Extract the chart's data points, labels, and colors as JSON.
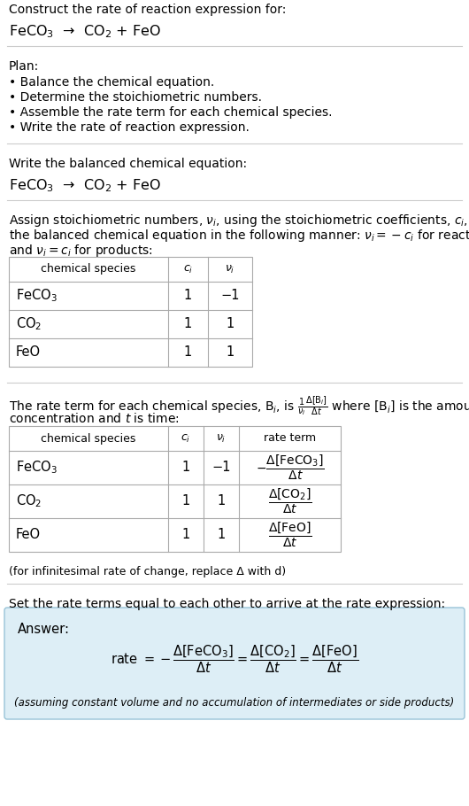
{
  "title_line1": "Construct the rate of reaction expression for:",
  "title_line2": "FeCO$_3$  →  CO$_2$ + FeO",
  "plan_header": "Plan:",
  "plan_items": [
    "• Balance the chemical equation.",
    "• Determine the stoichiometric numbers.",
    "• Assemble the rate term for each chemical species.",
    "• Write the rate of reaction expression."
  ],
  "section2_header": "Write the balanced chemical equation:",
  "section2_eq": "FeCO$_3$  →  CO$_2$ + FeO",
  "table1_headers": [
    "chemical species",
    "$c_i$",
    "$\\nu_i$"
  ],
  "table1_rows": [
    [
      "FeCO$_3$",
      "1",
      "−1"
    ],
    [
      "CO$_2$",
      "1",
      "1"
    ],
    [
      "FeO",
      "1",
      "1"
    ]
  ],
  "table2_headers": [
    "chemical species",
    "$c_i$",
    "$\\nu_i$",
    "rate term"
  ],
  "table2_rows": [
    [
      "FeCO$_3$",
      "1",
      "−1",
      "$-\\dfrac{\\Delta[\\mathrm{FeCO_3}]}{\\Delta t}$"
    ],
    [
      "CO$_2$",
      "1",
      "1",
      "$\\dfrac{\\Delta[\\mathrm{CO_2}]}{\\Delta t}$"
    ],
    [
      "FeO",
      "1",
      "1",
      "$\\dfrac{\\Delta[\\mathrm{FeO}]}{\\Delta t}$"
    ]
  ],
  "infinitesimal_note": "(for infinitesimal rate of change, replace Δ with d)",
  "section5_header": "Set the rate terms equal to each other to arrive at the rate expression:",
  "answer_label": "Answer:",
  "answer_note": "(assuming constant volume and no accumulation of intermediates or side products)",
  "answer_box_color": "#ddeef6",
  "answer_box_border": "#99c4d8",
  "bg_color": "#ffffff",
  "table_border_color": "#aaaaaa",
  "sep_color": "#cccccc"
}
